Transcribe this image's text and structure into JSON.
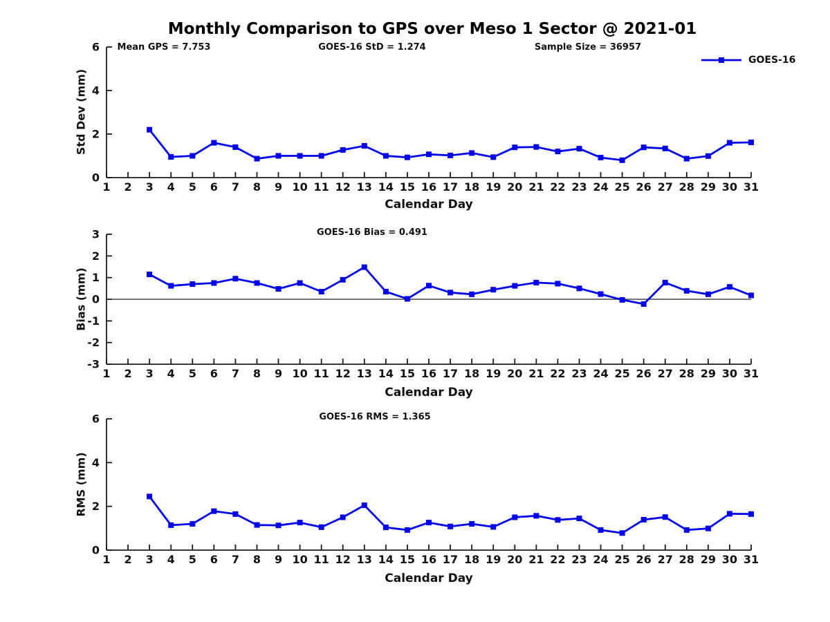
{
  "title": "Monthly Comparison to GPS over Meso 1 Sector @ 2021-01",
  "legend": {
    "label": "GOES-16"
  },
  "accent_color": "#0000EE",
  "chart_data": [
    {
      "id": "stddev",
      "type": "line",
      "title_annotations": [
        "Mean GPS = 7.753",
        "GOES-16 StD = 1.274",
        "Sample Size = 36957"
      ],
      "xlabel": "Calendar Day",
      "ylabel": "Std Dev (mm)",
      "xlim": [
        1,
        31
      ],
      "ylim": [
        0,
        6
      ],
      "yticks": [
        0,
        2,
        4,
        6
      ],
      "xticks": [
        1,
        2,
        3,
        4,
        5,
        6,
        7,
        8,
        9,
        10,
        11,
        12,
        13,
        14,
        15,
        16,
        17,
        18,
        19,
        20,
        21,
        22,
        23,
        24,
        25,
        26,
        27,
        28,
        29,
        30,
        31
      ],
      "grid": false,
      "zero_line": false,
      "legend_position": "top-right",
      "series": [
        {
          "name": "GOES-16",
          "color": "#0000EE",
          "marker": "square",
          "x": [
            3,
            4,
            5,
            6,
            7,
            8,
            9,
            10,
            11,
            12,
            13,
            14,
            15,
            16,
            17,
            18,
            19,
            20,
            21,
            22,
            23,
            24,
            25,
            26,
            27,
            28,
            29,
            30,
            31
          ],
          "y": [
            2.2,
            0.95,
            1.0,
            1.6,
            1.4,
            0.87,
            1.0,
            1.0,
            1.0,
            1.27,
            1.46,
            1.0,
            0.93,
            1.07,
            1.02,
            1.13,
            0.94,
            1.39,
            1.41,
            1.2,
            1.33,
            0.92,
            0.8,
            1.39,
            1.34,
            0.87,
            0.99,
            1.6,
            1.62
          ]
        }
      ]
    },
    {
      "id": "bias",
      "type": "line",
      "title_annotations": [
        "GOES-16 Bias = 0.491"
      ],
      "xlabel": "Calendar Day",
      "ylabel": "Bias (mm)",
      "xlim": [
        1,
        31
      ],
      "ylim": [
        -3,
        3
      ],
      "yticks": [
        -3,
        -2,
        -1,
        0,
        1,
        2,
        3
      ],
      "xticks": [
        1,
        2,
        3,
        4,
        5,
        6,
        7,
        8,
        9,
        10,
        11,
        12,
        13,
        14,
        15,
        16,
        17,
        18,
        19,
        20,
        21,
        22,
        23,
        24,
        25,
        26,
        27,
        28,
        29,
        30,
        31
      ],
      "grid": false,
      "zero_line": true,
      "series": [
        {
          "name": "GOES-16",
          "color": "#0000EE",
          "marker": "square",
          "x": [
            3,
            4,
            5,
            6,
            7,
            8,
            9,
            10,
            11,
            12,
            13,
            14,
            15,
            16,
            17,
            18,
            19,
            20,
            21,
            22,
            23,
            24,
            25,
            26,
            27,
            28,
            29,
            30,
            31
          ],
          "y": [
            1.15,
            0.62,
            0.7,
            0.75,
            0.95,
            0.75,
            0.48,
            0.75,
            0.35,
            0.9,
            1.48,
            0.35,
            0.02,
            0.63,
            0.31,
            0.23,
            0.44,
            0.62,
            0.77,
            0.72,
            0.5,
            0.24,
            -0.03,
            -0.22,
            0.77,
            0.39,
            0.23,
            0.57,
            0.18
          ]
        }
      ]
    },
    {
      "id": "rms",
      "type": "line",
      "title_annotations": [
        "GOES-16 RMS = 1.365"
      ],
      "xlabel": "Calendar Day",
      "ylabel": "RMS (mm)",
      "xlim": [
        1,
        31
      ],
      "ylim": [
        0,
        6
      ],
      "yticks": [
        0,
        2,
        4,
        6
      ],
      "xticks": [
        1,
        2,
        3,
        4,
        5,
        6,
        7,
        8,
        9,
        10,
        11,
        12,
        13,
        14,
        15,
        16,
        17,
        18,
        19,
        20,
        21,
        22,
        23,
        24,
        25,
        26,
        27,
        28,
        29,
        30,
        31
      ],
      "grid": false,
      "zero_line": false,
      "series": [
        {
          "name": "GOES-16",
          "color": "#0000EE",
          "marker": "square",
          "x": [
            3,
            4,
            5,
            6,
            7,
            8,
            9,
            10,
            11,
            12,
            13,
            14,
            15,
            16,
            17,
            18,
            19,
            20,
            21,
            22,
            23,
            24,
            25,
            26,
            27,
            28,
            29,
            30,
            31
          ],
          "y": [
            2.45,
            1.14,
            1.2,
            1.78,
            1.65,
            1.15,
            1.13,
            1.26,
            1.05,
            1.5,
            2.05,
            1.04,
            0.92,
            1.26,
            1.08,
            1.2,
            1.06,
            1.5,
            1.57,
            1.38,
            1.45,
            0.92,
            0.78,
            1.39,
            1.51,
            0.92,
            0.99,
            1.66,
            1.65
          ]
        }
      ]
    }
  ]
}
